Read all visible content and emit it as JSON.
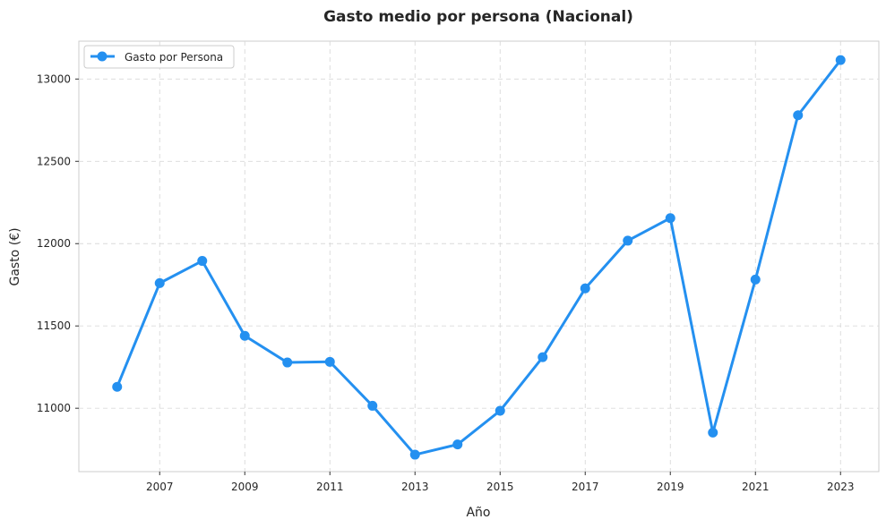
{
  "chart_data": {
    "type": "line",
    "title": "Gasto medio por persona (Nacional)",
    "xlabel": "Año",
    "ylabel": "Gasto (€)",
    "x": [
      2006,
      2007,
      2008,
      2009,
      2010,
      2011,
      2012,
      2013,
      2014,
      2015,
      2016,
      2017,
      2018,
      2019,
      2020,
      2021,
      2022,
      2023
    ],
    "x_ticks": [
      2007,
      2009,
      2011,
      2013,
      2015,
      2017,
      2019,
      2021,
      2023
    ],
    "y_ticks": [
      11000,
      11500,
      12000,
      12500,
      13000
    ],
    "xlim": [
      2005.1,
      2023.9
    ],
    "ylim": [
      10615,
      13230
    ],
    "grid": true,
    "legend_position": "top-left",
    "series": [
      {
        "name": "Gasto por Persona",
        "color": "#2490f0",
        "marker": "circle",
        "values": [
          11130,
          11760,
          11895,
          11440,
          11278,
          11282,
          11015,
          10718,
          10780,
          10985,
          11310,
          11728,
          12018,
          12155,
          10852,
          11782,
          12780,
          13115
        ]
      }
    ]
  }
}
